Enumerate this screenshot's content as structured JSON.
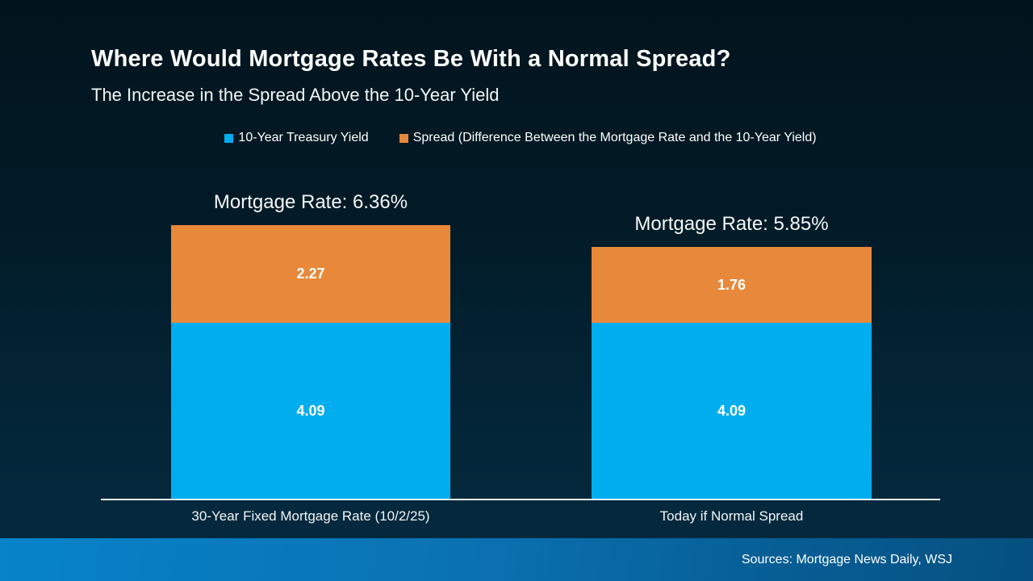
{
  "slide": {
    "title": "Where Would Mortgage Rates Be With a Normal Spread?",
    "subtitle": "The Increase in the Spread Above the 10-Year Yield",
    "source": "Sources: Mortgage News Daily, WSJ"
  },
  "colors": {
    "treasury_blue": "#00aeef",
    "spread_orange": "#e8883b",
    "background_top": "#01141d",
    "background_bottom": "#052a40",
    "footer_gradient_left": "#0783ca",
    "footer_gradient_right": "#055080",
    "axis_line": "#e9eef2",
    "text": "#ffffff"
  },
  "chart_data": {
    "type": "bar",
    "stacked": true,
    "title": "Where Would Mortgage Rates Be With a Normal Spread?",
    "subtitle": "The Increase in the Spread Above the 10-Year Yield",
    "categories": [
      "30-Year Fixed Mortgage Rate (10/2/25)",
      "Today if Normal Spread"
    ],
    "series": [
      {
        "name": "10-Year Treasury Yield",
        "color": "#00aeef",
        "values": [
          4.09,
          4.09
        ]
      },
      {
        "name": "Spread (Difference Between the Mortgage Rate and the 10-Year Yield)",
        "color": "#e8883b",
        "values": [
          2.27,
          1.76
        ]
      }
    ],
    "totals": [
      6.36,
      5.85
    ],
    "totals_labels": [
      "Mortgage Rate: 6.36%",
      "Mortgage Rate: 5.85%"
    ],
    "legend_position": "top",
    "grid": false,
    "value_axis_visible": false,
    "ylim": [
      0,
      7
    ]
  }
}
